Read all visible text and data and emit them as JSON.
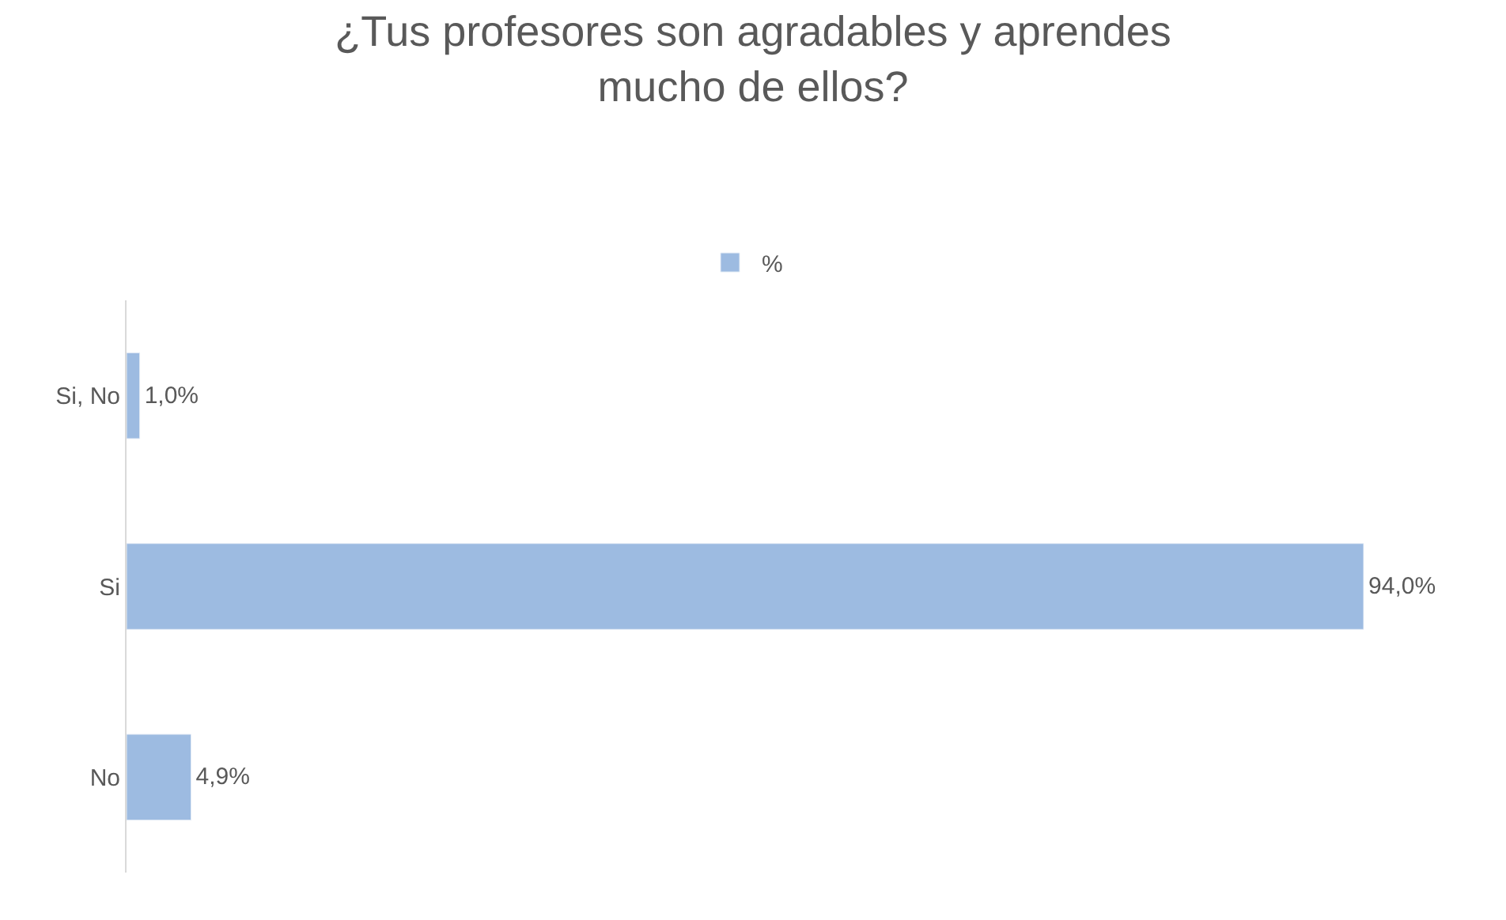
{
  "chart_data": {
    "type": "bar",
    "orientation": "horizontal",
    "title": "¿Tus profesores son agradables y aprendes\nmucho de ellos?",
    "categories": [
      "Si, No",
      "Si",
      "No"
    ],
    "series": [
      {
        "name": "%",
        "color": "#9dbbe1",
        "values": [
          1.0,
          94.0,
          4.9
        ],
        "value_labels": [
          "1,0%",
          "94,0%",
          "4,9%"
        ]
      }
    ],
    "legend": "top"
  }
}
